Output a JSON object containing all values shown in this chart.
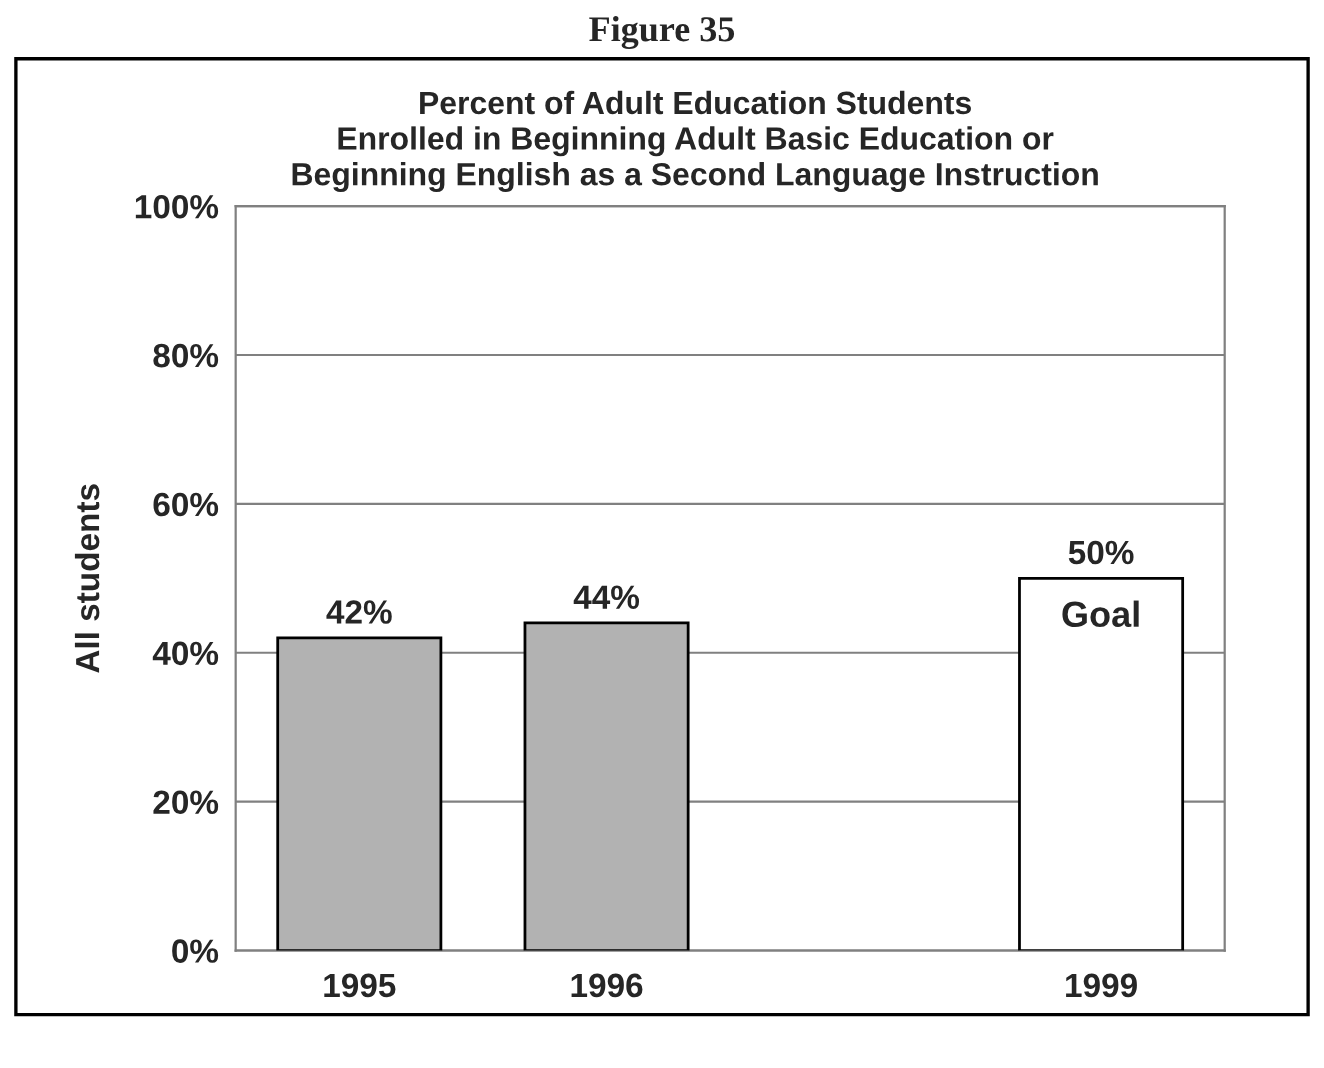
{
  "chart_data": {
    "type": "bar",
    "title": "Figure 35",
    "subtitle": "Percent of Adult Education Students\nEnrolled in Beginning Adult Basic Education or\nBeginning English as a Second Language Instruction",
    "ylabel": "All students",
    "categories": [
      "1995",
      "1996",
      null,
      "1999"
    ],
    "values": [
      42,
      44,
      null,
      50
    ],
    "colors": [
      "#b2b2b2",
      "#b2b2b2",
      "#ffffff",
      "#ffffff"
    ],
    "value_labels": [
      "42%",
      "44%",
      null,
      "50%"
    ],
    "annotations": [
      "Goal"
    ],
    "ylim": [
      0,
      100
    ],
    "yticks": [
      {
        "value": 0,
        "label": "0%"
      },
      {
        "value": 20,
        "label": "20%"
      },
      {
        "value": 40,
        "label": "40%"
      },
      {
        "value": 60,
        "label": "60%"
      },
      {
        "value": 80,
        "label": "80%"
      },
      {
        "value": 100,
        "label": "100%"
      }
    ],
    "grid": "y",
    "legend": false
  }
}
